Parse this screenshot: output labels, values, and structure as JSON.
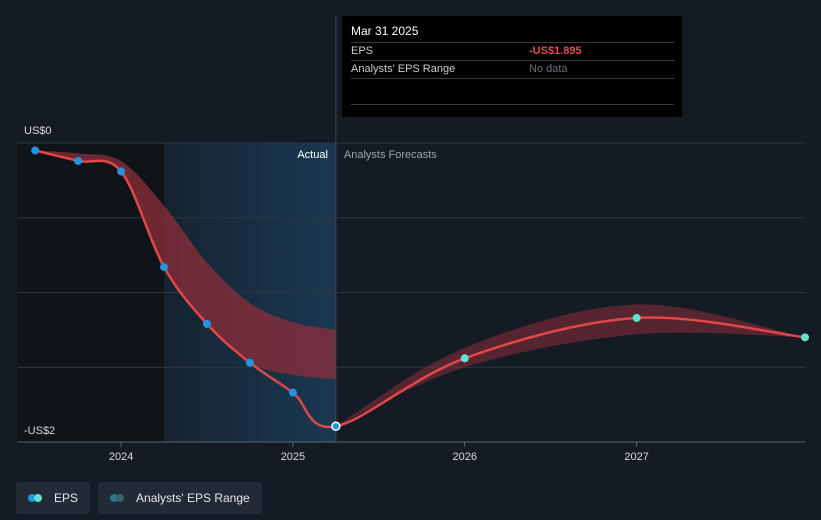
{
  "tooltip": {
    "date": "Mar 31 2025",
    "rows": [
      {
        "label": "EPS",
        "value": "-US$1.895"
      },
      {
        "label": "Analysts' EPS Range",
        "value": "No data"
      }
    ]
  },
  "legend": {
    "items": [
      {
        "label": "EPS",
        "colors": [
          "#2394df",
          "#5ce5d5"
        ]
      },
      {
        "label": "Analysts' EPS Range",
        "colors": [
          "#2c7a8f",
          "#3a6070"
        ]
      }
    ]
  },
  "colors": {
    "background": "#151b24",
    "eps_line": "#e04848",
    "actual_point": "#2394df",
    "forecast_point": "#5ce5d5",
    "range_fill": "#8c2e3a",
    "highlight": "#1a3a55",
    "past_shade": "#0f1419"
  },
  "chart_data": {
    "type": "line",
    "title": "",
    "xlabel": "",
    "ylabel": "",
    "y_top_label": "US$0",
    "y_bottom_label": "-US$2",
    "ylim": [
      -2,
      0
    ],
    "xlim": [
      2023.4,
      2027.98
    ],
    "x_ticks": [
      {
        "value": 2024.0,
        "label": "2024"
      },
      {
        "value": 2025.0,
        "label": "2025"
      },
      {
        "value": 2026.0,
        "label": "2026"
      },
      {
        "value": 2027.0,
        "label": "2027"
      }
    ],
    "actual_label": "Actual",
    "forecast_label": "Analysts Forecasts",
    "past_region": [
      2023.4,
      2024.25
    ],
    "highlight_region": [
      2024.25,
      2025.25
    ],
    "divider_x": 2025.25,
    "series": [
      {
        "name": "EPS",
        "points": [
          {
            "x": 2023.5,
            "y": -0.05,
            "kind": "actual"
          },
          {
            "x": 2023.75,
            "y": -0.12,
            "kind": "actual"
          },
          {
            "x": 2024.0,
            "y": -0.19,
            "kind": "actual"
          },
          {
            "x": 2024.25,
            "y": -0.83,
            "kind": "actual"
          },
          {
            "x": 2024.5,
            "y": -1.21,
            "kind": "actual"
          },
          {
            "x": 2024.75,
            "y": -1.47,
            "kind": "actual"
          },
          {
            "x": 2025.0,
            "y": -1.67,
            "kind": "actual"
          },
          {
            "x": 2025.25,
            "y": -1.895,
            "kind": "actual"
          },
          {
            "x": 2026.0,
            "y": -1.44,
            "kind": "forecast"
          },
          {
            "x": 2027.0,
            "y": -1.17,
            "kind": "forecast"
          },
          {
            "x": 2027.98,
            "y": -1.3,
            "kind": "forecast"
          }
        ]
      }
    ],
    "range_actual": {
      "x": [
        2023.5,
        2023.75,
        2024.0,
        2024.25,
        2024.5,
        2024.75,
        2025.0,
        2025.25
      ],
      "high": [
        -0.05,
        -0.07,
        -0.12,
        -0.42,
        -0.8,
        -1.07,
        -1.2,
        -1.25
      ],
      "low": [
        -0.05,
        -0.12,
        -0.19,
        -0.83,
        -1.21,
        -1.47,
        -1.55,
        -1.58
      ]
    },
    "range_forecast": {
      "x": [
        2025.25,
        2026.0,
        2027.0,
        2027.98
      ],
      "high": [
        -1.895,
        -1.37,
        -1.08,
        -1.3
      ],
      "low": [
        -1.895,
        -1.5,
        -1.28,
        -1.3
      ]
    }
  }
}
